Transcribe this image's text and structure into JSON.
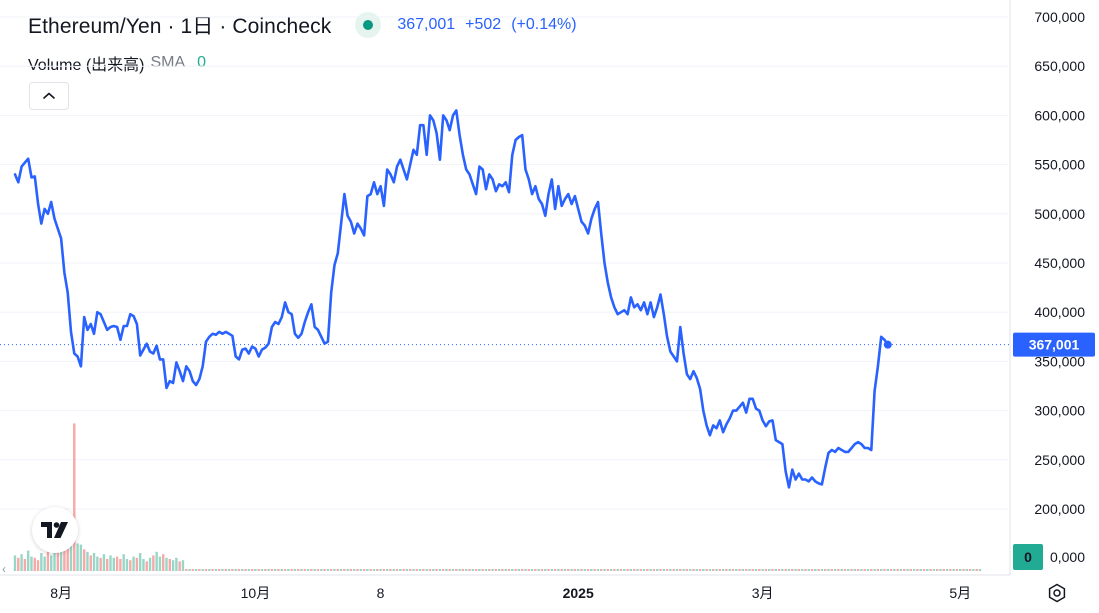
{
  "header": {
    "symbol": "Ethereum/Yen",
    "interval": "1日",
    "exchange": "Coincheck",
    "last_price": "367,001",
    "change": "+502",
    "change_pct": "(+0.14%)",
    "status_color": "#089981"
  },
  "volume_legend": {
    "name": "Volume (出来高)",
    "sma_label": "SMA",
    "sma_value": "0"
  },
  "controls": {
    "collapse_icon": "chevron-up-icon",
    "logo_icon": "tradingview-logo-icon",
    "settings_icon": "gear-icon"
  },
  "price_badge": {
    "label": "367,001",
    "color": "#2962ff"
  },
  "volume_badge": {
    "label": "0",
    "color": "#22ab94"
  },
  "chart_data": [
    {
      "type": "line",
      "series": [
        {
          "name": "Ethereum/Yen",
          "color": "#2962ff"
        }
      ],
      "x_ticks": [
        "8月",
        "10月",
        "8",
        "2025",
        "3月",
        "5月"
      ],
      "y_ticks": [
        "700,000",
        "650,000",
        "600,000",
        "550,000",
        "500,000",
        "450,000",
        "400,000",
        "350,000",
        "300,000",
        "250,000",
        "200,000"
      ],
      "ylim": [
        200000,
        700000
      ],
      "x_range": [
        0,
        293
      ],
      "x_tick_index": [
        14,
        73,
        111,
        171,
        227,
        287
      ],
      "last_value": 367001,
      "grid": true,
      "values": [
        540000,
        532000,
        548000,
        552000,
        556000,
        537000,
        538000,
        510000,
        490000,
        505000,
        500000,
        512000,
        495000,
        485000,
        475000,
        440000,
        420000,
        380000,
        358000,
        355000,
        345000,
        395000,
        382000,
        388000,
        378000,
        400000,
        398000,
        390000,
        382000,
        385000,
        386000,
        385000,
        372000,
        386000,
        386000,
        398000,
        396000,
        388000,
        356000,
        362000,
        368000,
        360000,
        358000,
        366000,
        352000,
        352000,
        323000,
        330000,
        328000,
        349000,
        340000,
        330000,
        345000,
        340000,
        330000,
        326000,
        332000,
        345000,
        370000,
        375000,
        378000,
        377000,
        380000,
        378000,
        380000,
        378000,
        376000,
        355000,
        352000,
        362000,
        363000,
        358000,
        365000,
        363000,
        355000,
        362000,
        364000,
        368000,
        385000,
        390000,
        388000,
        395000,
        410000,
        400000,
        398000,
        378000,
        374000,
        378000,
        390000,
        400000,
        408000,
        385000,
        382000,
        375000,
        368000,
        370000,
        420000,
        448000,
        460000,
        490000,
        520000,
        498000,
        492000,
        480000,
        490000,
        485000,
        478000,
        518000,
        520000,
        532000,
        520000,
        528000,
        508000,
        545000,
        540000,
        532000,
        548000,
        555000,
        545000,
        535000,
        550000,
        565000,
        560000,
        590000,
        590000,
        560000,
        600000,
        595000,
        582000,
        555000,
        600000,
        595000,
        585000,
        600000,
        605000,
        580000,
        560000,
        545000,
        540000,
        530000,
        520000,
        548000,
        545000,
        525000,
        540000,
        535000,
        523000,
        530000,
        528000,
        532000,
        522000,
        560000,
        575000,
        578000,
        580000,
        545000,
        535000,
        520000,
        528000,
        515000,
        510000,
        498000,
        520000,
        535000,
        505000,
        528000,
        508000,
        515000,
        520000,
        510000,
        518000,
        505000,
        492000,
        488000,
        480000,
        495000,
        505000,
        512000,
        480000,
        450000,
        430000,
        415000,
        405000,
        398000,
        400000,
        402000,
        398000,
        415000,
        405000,
        408000,
        402000,
        410000,
        398000,
        410000,
        395000,
        405000,
        418000,
        398000,
        375000,
        360000,
        355000,
        350000,
        385000,
        358000,
        337000,
        332000,
        340000,
        333000,
        322000,
        300000,
        285000,
        275000,
        285000,
        282000,
        290000,
        278000,
        286000,
        292000,
        300000,
        300000,
        304000,
        308000,
        298000,
        312000,
        312000,
        302000,
        300000,
        290000,
        284000,
        289000,
        290000,
        270000,
        268000,
        266000,
        238000,
        222000,
        240000,
        230000,
        236000,
        230000,
        230000,
        228000,
        232000,
        228000,
        226000,
        225000,
        242000,
        257000,
        260000,
        258000,
        262000,
        260000,
        258000,
        258000,
        262000,
        266000,
        268000,
        266000,
        262000,
        262000,
        260000,
        320000,
        345000,
        375000,
        372000,
        367001
      ],
      "xlabel": "",
      "ylabel": ""
    },
    {
      "type": "bar",
      "series": [
        {
          "name": "Volume (出来高)",
          "up_color": "#98d6c8",
          "down_color": "#f7a9a7"
        }
      ],
      "y_ticks": [
        "0,000"
      ],
      "ylim": [
        0,
        12
      ],
      "active_days": 52,
      "values": [
        1.3,
        1.1,
        1.4,
        1.0,
        1.7,
        1.2,
        1.1,
        0.9,
        1.5,
        1.2,
        1.6,
        1.3,
        1.5,
        1.8,
        1.6,
        2.5,
        2.8,
        4.2,
        12.3,
        2.3,
        2.2,
        1.8,
        1.6,
        1.3,
        1.5,
        1.2,
        1.1,
        1.4,
        1.0,
        1.3,
        1.1,
        1.2,
        1.0,
        1.4,
        1.0,
        0.9,
        1.2,
        1.1,
        1.5,
        1.0,
        0.8,
        1.1,
        1.3,
        1.6,
        1.2,
        1.4,
        1.1,
        1.0,
        0.9,
        1.1,
        0.8,
        0.9
      ],
      "up": [
        1,
        0,
        1,
        0,
        1,
        1,
        0,
        0,
        1,
        1,
        0,
        1,
        1,
        0,
        1,
        0,
        0,
        1,
        0,
        1,
        1,
        0,
        1,
        0,
        1,
        1,
        0,
        1,
        0,
        1,
        1,
        0,
        0,
        1,
        1,
        0,
        1,
        0,
        1,
        1,
        0,
        1,
        0,
        1,
        1,
        0,
        1,
        0,
        1,
        1,
        0,
        1
      ]
    }
  ]
}
